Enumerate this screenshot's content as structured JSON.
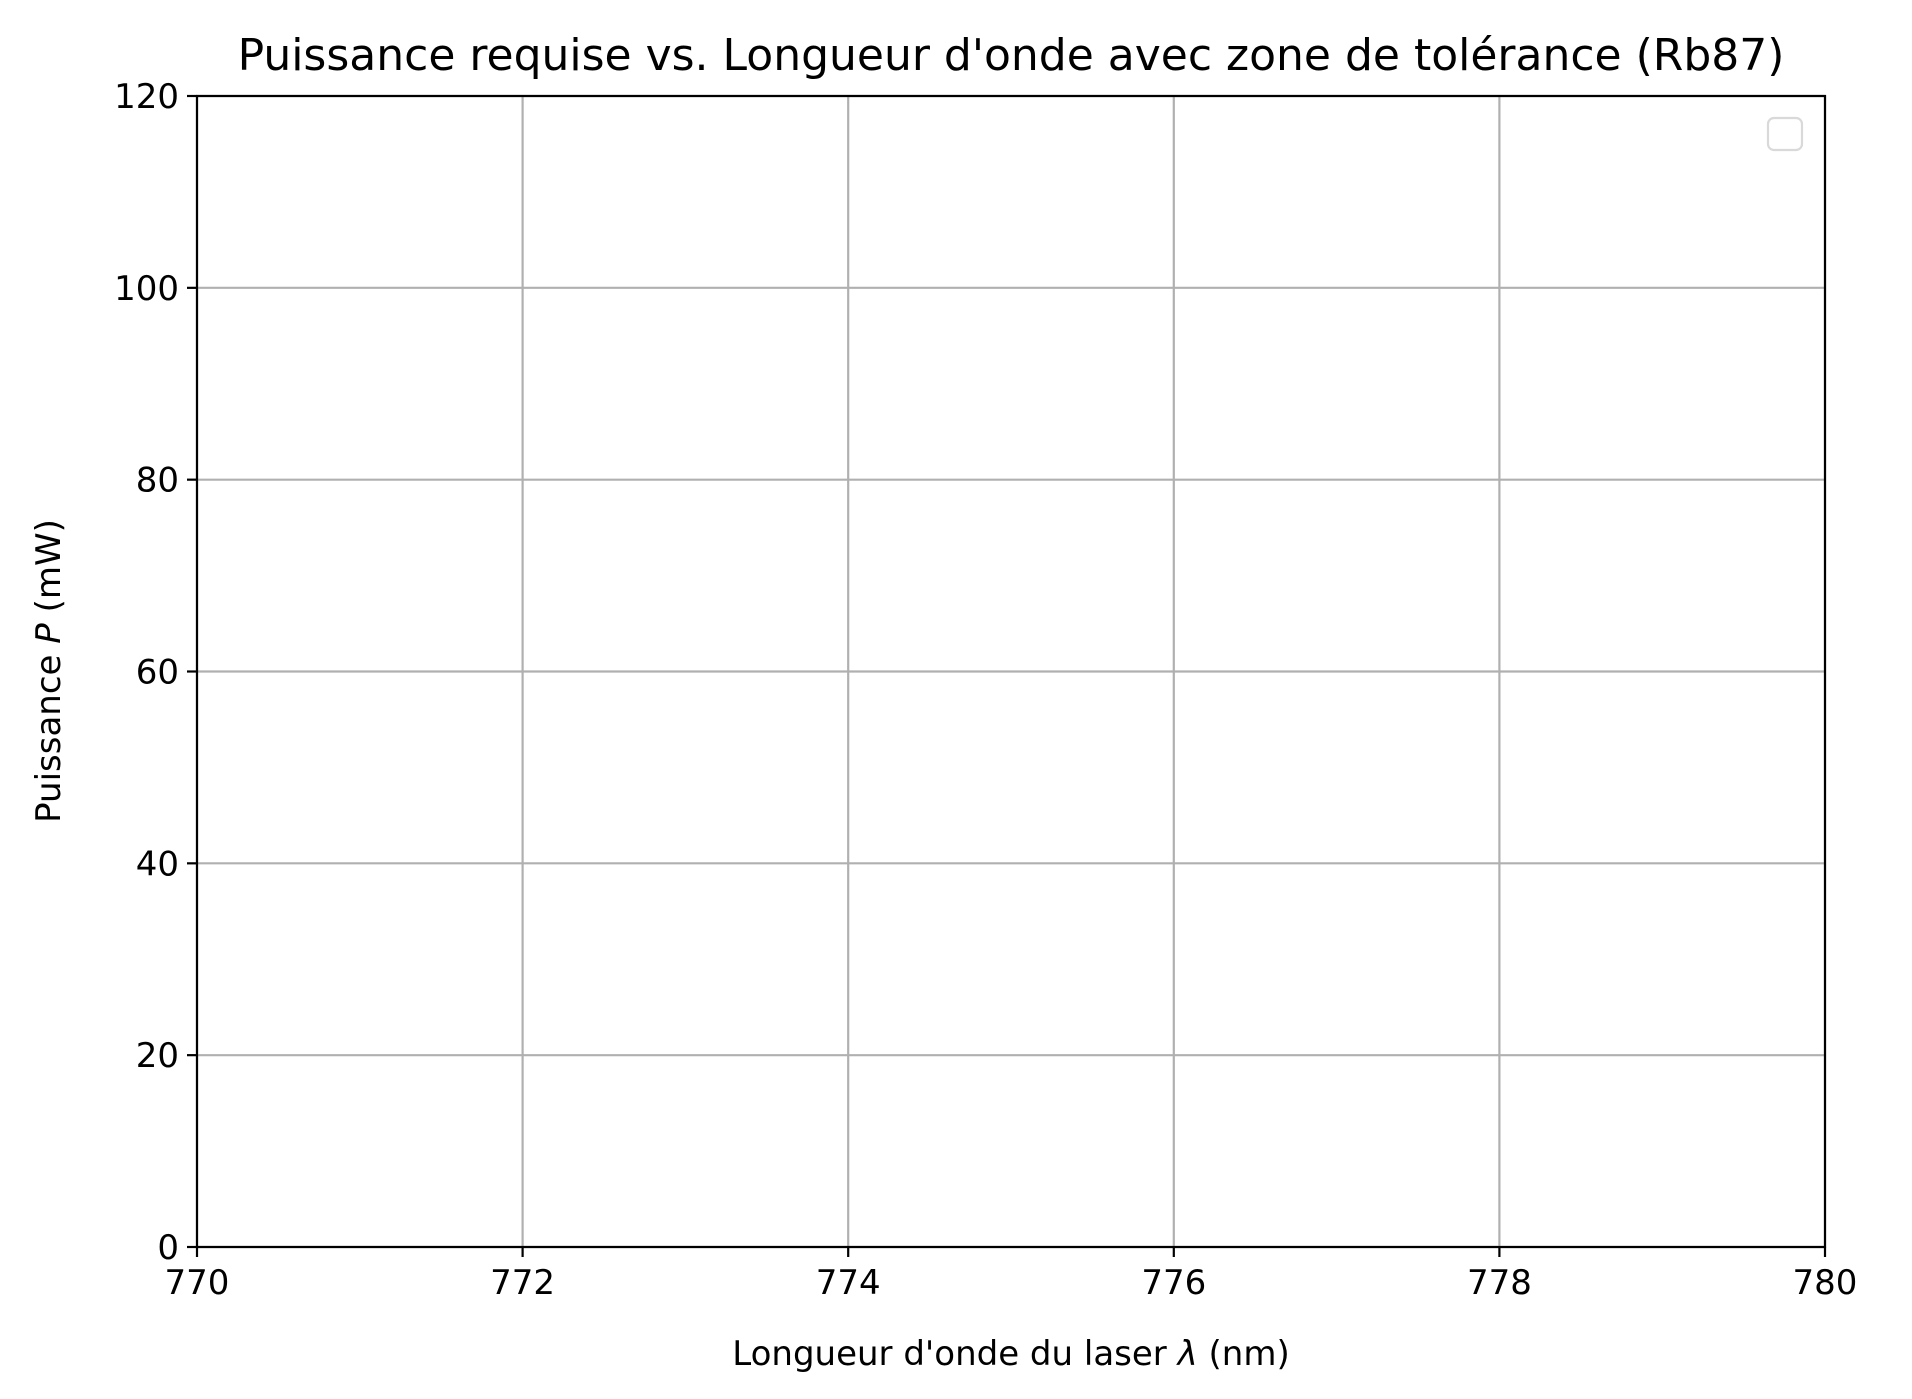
{
  "chart_data": {
    "type": "line",
    "title": "Puissance requise vs. Longueur d'onde avec zone de tolérance (Rb87)",
    "xlabel": {
      "prefix": "Longueur d'onde du laser ",
      "symbol": "λ",
      "suffix": " (nm)"
    },
    "ylabel": {
      "prefix": "Puissance ",
      "symbol": "P",
      "suffix": " (mW)"
    },
    "xlim": [
      770,
      780
    ],
    "ylim": [
      0,
      120
    ],
    "xticks": [
      770,
      772,
      774,
      776,
      778,
      780
    ],
    "yticks": [
      0,
      20,
      40,
      60,
      80,
      100,
      120
    ],
    "grid": true,
    "legend": {
      "placement": "top-right",
      "entries": []
    },
    "series": [],
    "colors": {
      "grid": "#b0b0b0",
      "axes": "#000000",
      "legend_border": "#d9d9d9"
    }
  }
}
